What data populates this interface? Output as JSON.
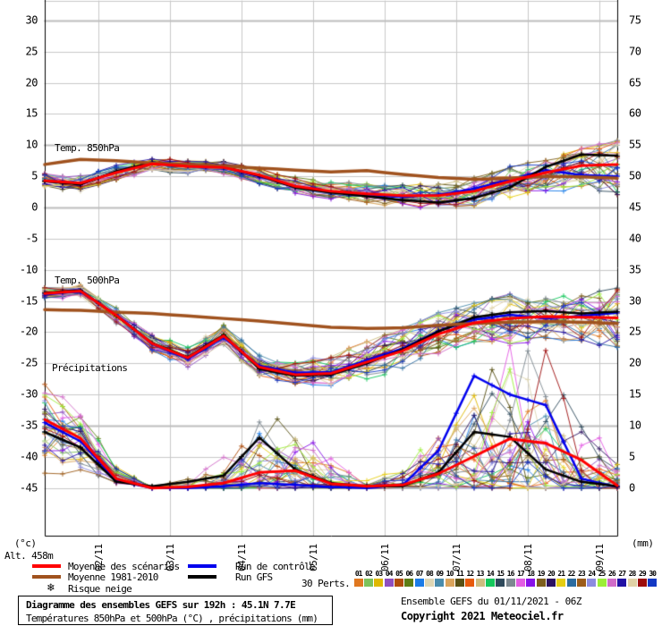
{
  "title_box": {
    "title": "Diagramme des ensembles GEFS sur 192h : 45.1N 7.7E",
    "subtitle": "Températures 850hPa et 500hPa (°C) , précipitations (mm)"
  },
  "info": {
    "run": "Ensemble GEFS du 01/11/2021 - 06Z",
    "copyright": "Copyright 2021 Meteociel.fr"
  },
  "legend": {
    "mean_label": "Moyenne des scénarios",
    "climato_label": "Moyenne 1981-2010",
    "snow_label": "Risque neige",
    "snow_icon_color": "#74b6e8",
    "control_label": "Run de contrôle",
    "gfs_label": "Run GFS",
    "perts_label": "30 Perts."
  },
  "chart_data": {
    "type": "line",
    "title": "Diagramme des ensembles GEFS sur 192h : 45.1N 7.7E",
    "altitude_label": "Alt. 458m",
    "panels": [
      {
        "label": "Temp. 850hPa"
      },
      {
        "label": "Temp. 500hPa"
      },
      {
        "label": "Précipitations"
      }
    ],
    "x_axis": {
      "dates": [
        "02/11",
        "03/11",
        "04/11",
        "05/11",
        "06/11",
        "07/11",
        "08/11",
        "09/11"
      ],
      "tick_hours": [
        18,
        42,
        66,
        90,
        114,
        138,
        162,
        186
      ],
      "range_hours": [
        0,
        192
      ],
      "grid": true
    },
    "y_left": {
      "unit": "(°c)",
      "ticks": [
        30,
        25,
        20,
        15,
        10,
        5,
        0,
        -5,
        -10,
        -15,
        -20,
        -25,
        -30,
        -35,
        -40,
        -45
      ],
      "range": [
        30,
        -45
      ]
    },
    "y_right": {
      "unit": "(mm)",
      "ticks": [
        75,
        70,
        65,
        60,
        55,
        50,
        45,
        40,
        35,
        30,
        25,
        20,
        15,
        10,
        5,
        0
      ],
      "range": [
        75,
        0
      ]
    },
    "colors": {
      "mean": "#ff0000",
      "climato": "#a0521e",
      "control": "#0000ee",
      "gfs": "#000000",
      "grid": "#c9c9c9",
      "grid_emph": "#bdbdbd",
      "frame": "#000000"
    },
    "series_hours": [
      0,
      12,
      24,
      36,
      48,
      60,
      72,
      84,
      96,
      108,
      120,
      132,
      144,
      156,
      168,
      180,
      192
    ],
    "t850": {
      "mean": [
        4.3,
        3.9,
        5.6,
        7.0,
        6.6,
        6.4,
        5.2,
        3.4,
        2.6,
        2.2,
        1.9,
        1.9,
        2.6,
        4.2,
        5.6,
        6.7,
        6.9
      ],
      "climato": [
        6.9,
        7.7,
        7.5,
        7.1,
        6.9,
        6.6,
        6.3,
        6.0,
        5.7,
        5.9,
        5.3,
        4.8,
        4.5,
        4.7,
        5.0,
        4.9,
        4.7
      ],
      "control": [
        4.3,
        3.8,
        5.7,
        7.1,
        6.7,
        6.4,
        5.0,
        3.3,
        2.5,
        2.0,
        1.7,
        2.0,
        3.0,
        4.5,
        6.0,
        5.2,
        5.0
      ],
      "gfs": [
        4.2,
        3.7,
        5.8,
        7.2,
        6.8,
        6.5,
        5.1,
        3.2,
        2.4,
        1.8,
        1.2,
        0.8,
        1.5,
        3.2,
        6.5,
        8.5,
        8.3
      ],
      "env_min": [
        3.4,
        2.8,
        4.6,
        6.0,
        5.6,
        5.2,
        3.8,
        2.2,
        1.4,
        0.8,
        0.2,
        0.0,
        0.4,
        1.6,
        2.6,
        3.0,
        2.2
      ],
      "env_max": [
        5.4,
        5.0,
        6.6,
        8.0,
        7.4,
        7.4,
        6.2,
        4.6,
        4.0,
        3.6,
        3.4,
        3.8,
        4.6,
        6.4,
        7.8,
        9.6,
        10.6
      ]
    },
    "t500": {
      "mean": [
        -13.8,
        -13.4,
        -17.3,
        -21.8,
        -24.1,
        -20.6,
        -25.6,
        -26.8,
        -26.6,
        -24.8,
        -23.0,
        -20.3,
        -18.5,
        -17.8,
        -17.5,
        -17.6,
        -17.7
      ],
      "climato": [
        -16.4,
        -16.5,
        -16.8,
        -17.0,
        -17.4,
        -17.8,
        -18.2,
        -18.7,
        -19.2,
        -19.4,
        -19.3,
        -18.9,
        -18.6,
        -18.4,
        -18.3,
        -18.4,
        -18.6
      ],
      "control": [
        -13.9,
        -13.5,
        -17.2,
        -21.9,
        -24.3,
        -20.8,
        -25.4,
        -26.5,
        -26.4,
        -24.5,
        -22.6,
        -19.8,
        -18.0,
        -17.2,
        -17.8,
        -17.4,
        -16.9
      ],
      "gfs": [
        -13.7,
        -13.3,
        -17.4,
        -21.7,
        -24.0,
        -20.4,
        -25.9,
        -27.0,
        -26.8,
        -25.0,
        -22.8,
        -19.9,
        -17.6,
        -16.8,
        -16.6,
        -17.0,
        -16.7
      ],
      "env_min": [
        -14.6,
        -14.2,
        -18.4,
        -23.0,
        -25.6,
        -21.8,
        -27.2,
        -28.2,
        -28.4,
        -27.5,
        -26.0,
        -23.5,
        -21.5,
        -22.0,
        -21.0,
        -21.5,
        -22.5
      ],
      "env_max": [
        -13.0,
        -12.6,
        -16.2,
        -20.4,
        -22.6,
        -19.0,
        -23.2,
        -24.6,
        -24.0,
        -21.5,
        -19.5,
        -17.0,
        -15.5,
        -14.0,
        -14.5,
        -14.0,
        -13.0
      ]
    },
    "precip": {
      "mean": [
        11.0,
        8.0,
        1.5,
        0.0,
        0.2,
        0.8,
        2.5,
        2.8,
        0.7,
        0.3,
        0.5,
        2.3,
        5.1,
        7.9,
        7.2,
        4.5,
        0.4
      ],
      "control": [
        10.5,
        7.5,
        1.2,
        0.0,
        0.0,
        0.3,
        0.8,
        0.5,
        0.2,
        0.0,
        0.5,
        6.0,
        18.0,
        15.0,
        13.3,
        1.5,
        0.2
      ],
      "gfs": [
        9.0,
        6.5,
        1.0,
        0.3,
        1.0,
        2.0,
        8.1,
        3.0,
        0.8,
        0.3,
        0.3,
        2.5,
        9.0,
        8.2,
        3.0,
        1.0,
        0.3
      ],
      "env_min": [
        2.0,
        1.0,
        0,
        0,
        0,
        0,
        0,
        0,
        0,
        0,
        0,
        0,
        0,
        0,
        0,
        0,
        0
      ],
      "env_max": [
        17,
        14,
        4,
        0.5,
        2.5,
        7,
        15,
        16,
        8,
        2.5,
        5,
        15,
        27,
        33,
        25,
        17,
        6
      ]
    },
    "members": {
      "count": 30,
      "labels": [
        "01",
        "02",
        "03",
        "04",
        "05",
        "06",
        "07",
        "08",
        "09",
        "10",
        "11",
        "12",
        "13",
        "14",
        "15",
        "16",
        "17",
        "18",
        "19",
        "20",
        "21",
        "22",
        "23",
        "24",
        "25",
        "26",
        "27",
        "28",
        "29",
        "30"
      ],
      "colors": [
        "#e07820",
        "#7dc25a",
        "#dfb800",
        "#8f4fc0",
        "#b04c0a",
        "#5d7d14",
        "#1b7ce8",
        "#ded6b4",
        "#4a8cac",
        "#dba45c",
        "#585014",
        "#e85a0c",
        "#cdbd80",
        "#14c85c",
        "#2f4a5c",
        "#7d8890",
        "#e35ce3",
        "#8812e8",
        "#7d5f1d",
        "#2c1260",
        "#e5ce14",
        "#2c6ca0",
        "#9c5c1a",
        "#8c8ce0",
        "#9cee38",
        "#d06cc8",
        "#2212a4",
        "#e0d2a6",
        "#9c0c0c",
        "#1238c4"
      ]
    }
  }
}
